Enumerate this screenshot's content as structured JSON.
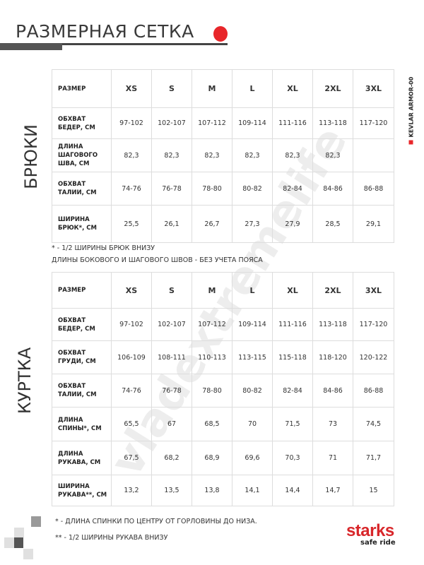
{
  "header": {
    "title": "РАЗМЕРНАЯ СЕТКА",
    "accent_color": "#e8262a"
  },
  "side_label": "KEVLAR ARMOR-00",
  "watermark": "vladextremelife",
  "sizes": [
    "XS",
    "S",
    "M",
    "L",
    "XL",
    "2XL",
    "3XL"
  ],
  "pants": {
    "section_label": "БРЮКИ",
    "header_label": "РАЗМЕР",
    "rows": [
      {
        "label": "ОБХВАТ БЕДЕР, СМ",
        "values": [
          "97-102",
          "102-107",
          "107-112",
          "109-114",
          "111-116",
          "113-118",
          "117-120"
        ]
      },
      {
        "label": "ДЛИНА ШАГОВОГО ШВА, СМ",
        "values": [
          "82,3",
          "82,3",
          "82,3",
          "82,3",
          "82,3",
          "82,3",
          ""
        ]
      },
      {
        "label": "ОБХВАТ ТАЛИИ, СМ",
        "values": [
          "74-76",
          "76-78",
          "78-80",
          "80-82",
          "82-84",
          "84-86",
          "86-88"
        ]
      },
      {
        "label": "ШИРИНА БРЮК*, СМ",
        "values": [
          "25,5",
          "26,1",
          "26,7",
          "27,3",
          "27,9",
          "28,5",
          "29,1"
        ]
      }
    ],
    "notes": [
      "* - 1/2 ШИРИНЫ БРЮК ВНИЗУ",
      "ДЛИНЫ БОКОВОГО И ШАГОВОГО ШВОВ  - БЕЗ УЧЕТА ПОЯСА"
    ]
  },
  "jacket": {
    "section_label": "КУРТКА",
    "header_label": "РАЗМЕР",
    "rows": [
      {
        "label": "ОБХВАТ БЕДЕР, СМ",
        "values": [
          "97-102",
          "102-107",
          "107-112",
          "109-114",
          "111-116",
          "113-118",
          "117-120"
        ]
      },
      {
        "label": "ОБХВАТ ГРУДИ, СМ",
        "values": [
          "106-109",
          "108-111",
          "110-113",
          "113-115",
          "115-118",
          "118-120",
          "120-122"
        ]
      },
      {
        "label": "ОБХВАТ ТАЛИИ, СМ",
        "values": [
          "74-76",
          "76-78",
          "78-80",
          "80-82",
          "82-84",
          "84-86",
          "86-88"
        ]
      },
      {
        "label": "ДЛИНА СПИНЫ*, СМ",
        "values": [
          "65,5",
          "67",
          "68,5",
          "70",
          "71,5",
          "73",
          "74,5"
        ]
      },
      {
        "label": "ДЛИНА РУКАВА, СМ",
        "values": [
          "67,5",
          "68,2",
          "68,9",
          "69,6",
          "70,3",
          "71",
          "71,7"
        ]
      },
      {
        "label": "ШИРИНА РУКАВА**, СМ",
        "values": [
          "13,2",
          "13,5",
          "13,8",
          "14,1",
          "14,4",
          "14,7",
          "15"
        ]
      }
    ],
    "notes": [
      "* - ДЛИНА СПИНКИ ПО ЦЕНТРУ ОТ ГОРЛОВИНЫ ДО НИЗА.",
      "** - 1/2 ШИРИНЫ РУКАВА ВНИЗУ"
    ]
  },
  "logo": {
    "brand": "starks",
    "tagline": "safe ride",
    "color": "#d8262a"
  }
}
